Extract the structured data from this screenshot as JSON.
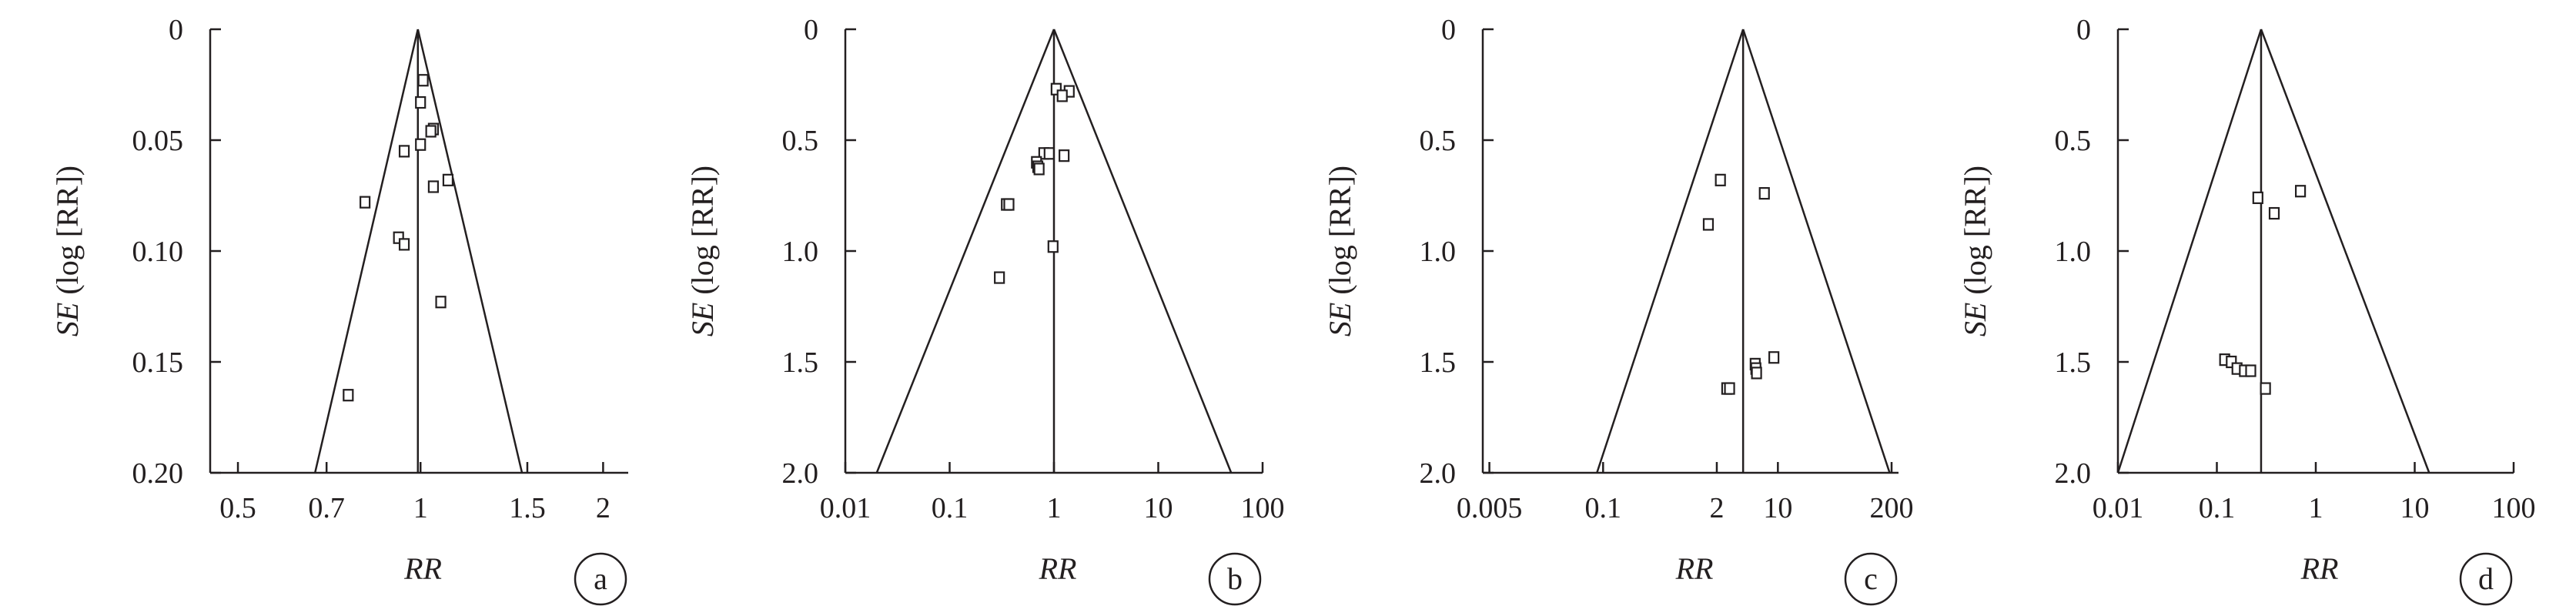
{
  "chart_data": [
    {
      "type": "scatter",
      "panel": "a",
      "xlabel": "RR",
      "ylabel": "SE (log [RR])",
      "xscale": "log",
      "xlim": [
        0.45,
        2.2
      ],
      "xticks": [
        0.5,
        0.7,
        1,
        1.5,
        2
      ],
      "xtick_labels": [
        "0.5",
        "0.7",
        "1",
        "1.5",
        "2"
      ],
      "ylim": [
        0,
        0.2
      ],
      "yticks": [
        0,
        0.05,
        0.1,
        0.15,
        0.2
      ],
      "ytick_labels": [
        "0",
        "0.05",
        "0.10",
        "0.15",
        "0.20"
      ],
      "y_inverted": true,
      "pooled_rr": 0.99,
      "funnel_limits": {
        "left_rr_at_max_se": 0.67,
        "right_rr_at_max_se": 1.47
      },
      "points": [
        {
          "x": 1.01,
          "y": 0.023
        },
        {
          "x": 1.0,
          "y": 0.033
        },
        {
          "x": 1.05,
          "y": 0.045
        },
        {
          "x": 1.04,
          "y": 0.046
        },
        {
          "x": 1.0,
          "y": 0.052
        },
        {
          "x": 0.94,
          "y": 0.055
        },
        {
          "x": 1.11,
          "y": 0.068
        },
        {
          "x": 1.05,
          "y": 0.071
        },
        {
          "x": 0.81,
          "y": 0.078
        },
        {
          "x": 0.92,
          "y": 0.094
        },
        {
          "x": 0.94,
          "y": 0.097
        },
        {
          "x": 1.08,
          "y": 0.123
        },
        {
          "x": 0.76,
          "y": 0.165
        }
      ]
    },
    {
      "type": "scatter",
      "panel": "b",
      "xlabel": "RR",
      "ylabel": "SE (log [RR])",
      "xscale": "log",
      "xlim": [
        0.01,
        100
      ],
      "xticks": [
        0.01,
        0.1,
        1,
        10,
        100
      ],
      "xtick_labels": [
        "0.01",
        "0.1",
        "1",
        "10",
        "100"
      ],
      "ylim": [
        0,
        2
      ],
      "yticks": [
        0,
        0.5,
        1,
        1.5,
        2
      ],
      "ytick_labels": [
        "0",
        "0.5",
        "1.0",
        "1.5",
        "2.0"
      ],
      "y_inverted": true,
      "pooled_rr": 1.0,
      "funnel_limits": {
        "left_rr_at_max_se": 0.02,
        "right_rr_at_max_se": 50
      },
      "points": [
        {
          "x": 1.05,
          "y": 0.27
        },
        {
          "x": 1.4,
          "y": 0.28
        },
        {
          "x": 1.2,
          "y": 0.3
        },
        {
          "x": 0.8,
          "y": 0.56
        },
        {
          "x": 0.9,
          "y": 0.56
        },
        {
          "x": 1.25,
          "y": 0.57
        },
        {
          "x": 0.68,
          "y": 0.6
        },
        {
          "x": 0.7,
          "y": 0.62
        },
        {
          "x": 0.72,
          "y": 0.63
        },
        {
          "x": 0.35,
          "y": 0.79
        },
        {
          "x": 0.37,
          "y": 0.79
        },
        {
          "x": 0.98,
          "y": 0.98
        },
        {
          "x": 0.3,
          "y": 1.12
        }
      ]
    },
    {
      "type": "scatter",
      "panel": "c",
      "xlabel": "RR",
      "ylabel": "SE (log [RR])",
      "xscale": "log",
      "xlim": [
        0.0042,
        240
      ],
      "xticks": [
        0.005,
        0.1,
        2,
        10,
        200
      ],
      "xtick_labels": [
        "0.005",
        "0.1",
        "2",
        "10",
        "200"
      ],
      "ylim": [
        0,
        2
      ],
      "yticks": [
        0,
        0.5,
        1,
        1.5,
        2
      ],
      "ytick_labels": [
        "0",
        "0.5",
        "1.0",
        "1.5",
        "2.0"
      ],
      "y_inverted": true,
      "pooled_rr": 4.0,
      "funnel_limits": {
        "left_rr_at_max_se": 0.085,
        "right_rr_at_max_se": 190
      },
      "points": [
        {
          "x": 2.2,
          "y": 0.68
        },
        {
          "x": 7.0,
          "y": 0.74
        },
        {
          "x": 1.6,
          "y": 0.88
        },
        {
          "x": 9.0,
          "y": 1.48
        },
        {
          "x": 5.5,
          "y": 1.51
        },
        {
          "x": 5.6,
          "y": 1.53
        },
        {
          "x": 5.7,
          "y": 1.55
        },
        {
          "x": 2.6,
          "y": 1.62
        },
        {
          "x": 2.8,
          "y": 1.62
        }
      ]
    },
    {
      "type": "scatter",
      "panel": "d",
      "xlabel": "RR",
      "ylabel": "SE (log [RR])",
      "xscale": "log",
      "xlim": [
        0.01,
        100
      ],
      "xticks": [
        0.01,
        0.1,
        1,
        10,
        100
      ],
      "xtick_labels": [
        "0.01",
        "0.1",
        "1",
        "10",
        "100"
      ],
      "ylim": [
        0,
        2
      ],
      "yticks": [
        0,
        0.5,
        1,
        1.5,
        2
      ],
      "ytick_labels": [
        "0",
        "0.5",
        "1.0",
        "1.5",
        "2.0"
      ],
      "y_inverted": true,
      "pooled_rr": 0.28,
      "funnel_limits": {
        "left_rr_at_max_se": 0.01,
        "right_rr_at_max_se": 14
      },
      "points": [
        {
          "x": 0.26,
          "y": 0.76
        },
        {
          "x": 0.7,
          "y": 0.73
        },
        {
          "x": 0.38,
          "y": 0.83
        },
        {
          "x": 0.12,
          "y": 1.49
        },
        {
          "x": 0.14,
          "y": 1.5
        },
        {
          "x": 0.16,
          "y": 1.53
        },
        {
          "x": 0.19,
          "y": 1.54
        },
        {
          "x": 0.22,
          "y": 1.54
        },
        {
          "x": 0.31,
          "y": 1.62
        }
      ]
    }
  ]
}
